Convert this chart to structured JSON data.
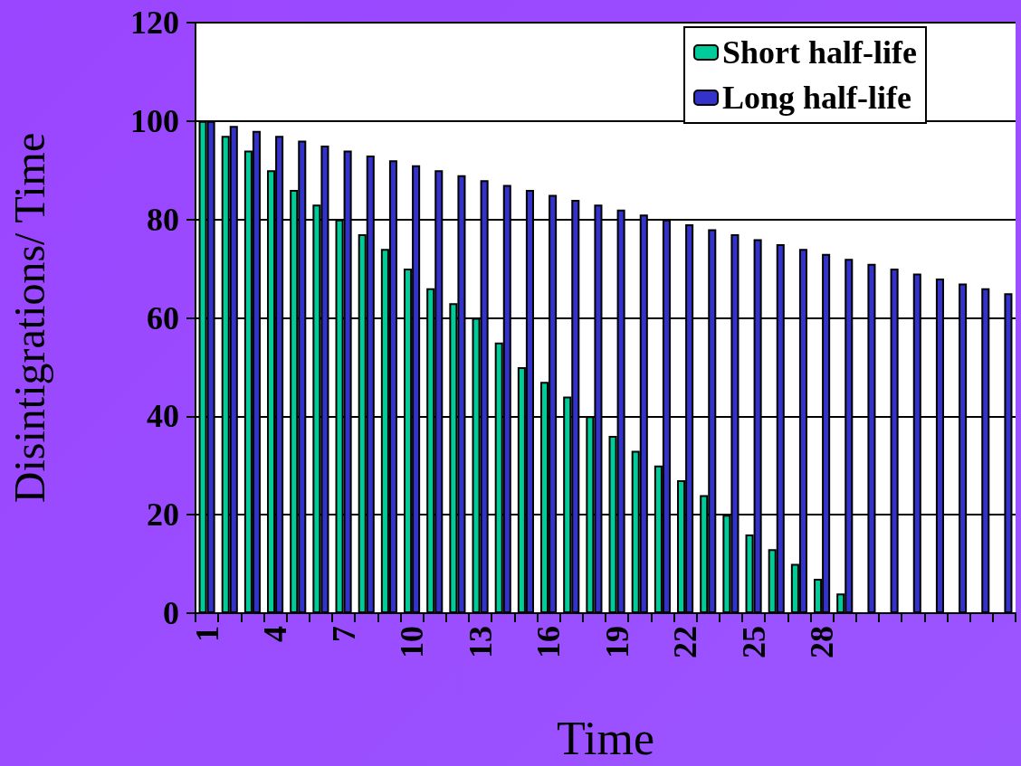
{
  "chart_data": {
    "type": "bar",
    "xlabel": "Time",
    "ylabel": "Disintigrations/ Time",
    "categories": [
      "1",
      null,
      null,
      "4",
      null,
      null,
      "7",
      null,
      null,
      "10",
      null,
      null,
      "13",
      null,
      null,
      "16",
      null,
      null,
      "19",
      null,
      null,
      "22",
      null,
      null,
      "25",
      null,
      null,
      "28",
      null,
      null,
      null,
      null,
      null,
      null,
      null,
      null
    ],
    "series": [
      {
        "name": "Short half-life",
        "color": "#00cc99",
        "values": [
          100,
          97,
          94,
          90,
          86,
          83,
          80,
          77,
          74,
          70,
          66,
          63,
          60,
          55,
          50,
          47,
          44,
          40,
          36,
          33,
          30,
          27,
          24,
          20,
          16,
          13,
          10,
          7,
          4,
          null,
          null,
          null,
          null,
          null,
          null,
          null
        ]
      },
      {
        "name": "Long half-life",
        "color": "#3333cc",
        "values": [
          100,
          99,
          98,
          97,
          96,
          95,
          94,
          93,
          92,
          91,
          90,
          89,
          88,
          87,
          86,
          85,
          84,
          83,
          82,
          81,
          80,
          79,
          78,
          77,
          76,
          75,
          74,
          73,
          72,
          71,
          70,
          69,
          68,
          67,
          66,
          65
        ]
      }
    ],
    "ylim": [
      0,
      120
    ],
    "yticks": [
      0,
      20,
      40,
      60,
      80,
      100,
      120
    ],
    "grid": "y",
    "legend": "top right"
  }
}
